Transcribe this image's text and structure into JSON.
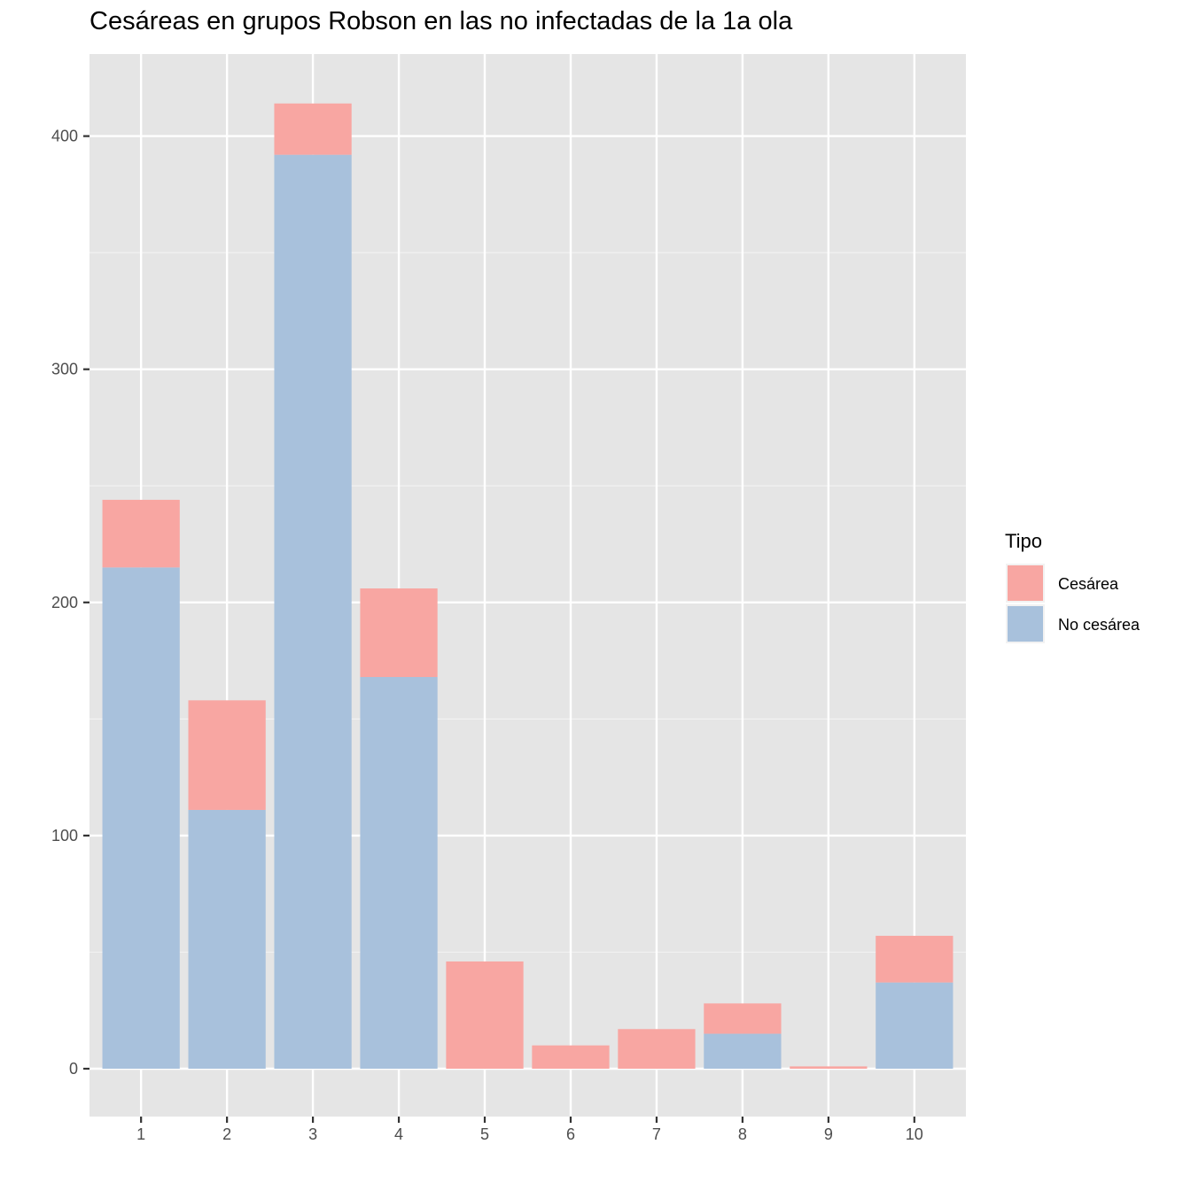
{
  "chart_data": {
    "type": "bar",
    "stacked": true,
    "title": "Cesáreas en grupos Robson en las no infectadas de la 1a ola",
    "xlabel": "",
    "ylabel": "",
    "categories": [
      "1",
      "2",
      "3",
      "4",
      "5",
      "6",
      "7",
      "8",
      "9",
      "10"
    ],
    "series": [
      {
        "name": "Cesárea",
        "color": "#F8A6A2",
        "values": [
          29,
          47,
          22,
          38,
          46,
          10,
          17,
          13,
          1,
          20
        ]
      },
      {
        "name": "No cesárea",
        "color": "#A8C1DC",
        "values": [
          215,
          111,
          392,
          168,
          0,
          0,
          0,
          15,
          0,
          37
        ]
      }
    ],
    "ylim": [
      -20,
      433
    ],
    "yticks": [
      0,
      100,
      200,
      300,
      400
    ],
    "grid": true,
    "legend": {
      "title": "Tipo",
      "placement": "right"
    }
  }
}
